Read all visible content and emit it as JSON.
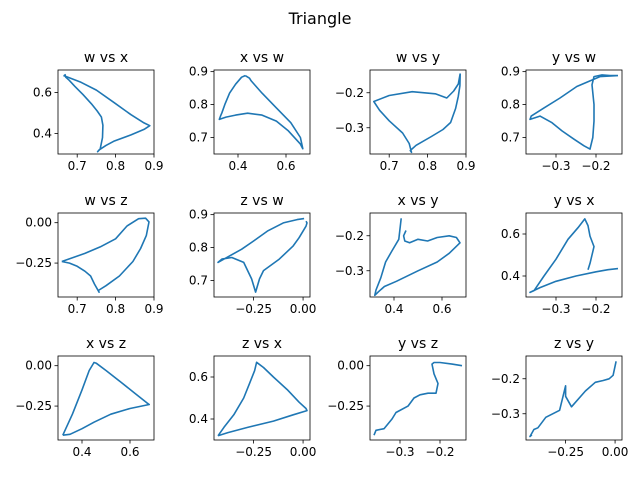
{
  "suptitle": "Triangle",
  "chart_data": [
    {
      "type": "line",
      "title": "w vs x",
      "xlim": [
        0.65,
        0.9
      ],
      "ylim": [
        0.3,
        0.71
      ],
      "xticks": [
        {
          "v": 0.7,
          "label": "0.7"
        },
        {
          "v": 0.8,
          "label": "0.8"
        },
        {
          "v": 0.9,
          "label": "0.9"
        }
      ],
      "yticks": [
        {
          "v": 0.4,
          "label": "0.4"
        },
        {
          "v": 0.6,
          "label": "0.6"
        }
      ],
      "x": [
        0.664,
        0.71,
        0.75,
        0.797,
        0.84,
        0.874,
        0.889,
        0.874,
        0.84,
        0.795,
        0.775,
        0.757,
        0.753,
        0.76,
        0.766,
        0.767,
        0.763,
        0.752,
        0.737,
        0.715,
        0.694,
        0.679,
        0.67,
        0.668
      ],
      "y": [
        0.683,
        0.65,
        0.612,
        0.55,
        0.492,
        0.452,
        0.438,
        0.42,
        0.393,
        0.362,
        0.342,
        0.32,
        0.311,
        0.325,
        0.38,
        0.44,
        0.48,
        0.51,
        0.545,
        0.59,
        0.63,
        0.66,
        0.675,
        0.69
      ]
    },
    {
      "type": "line",
      "title": "x vs w",
      "xlim": [
        0.3,
        0.7
      ],
      "ylim": [
        0.65,
        0.905
      ],
      "xticks": [
        {
          "v": 0.4,
          "label": "0.4"
        },
        {
          "v": 0.6,
          "label": "0.6"
        }
      ],
      "yticks": [
        {
          "v": 0.7,
          "label": "0.7"
        },
        {
          "v": 0.8,
          "label": "0.8"
        },
        {
          "v": 0.9,
          "label": "0.9"
        }
      ],
      "x": [
        0.43,
        0.448,
        0.455,
        0.5,
        0.56,
        0.62,
        0.66,
        0.67,
        0.66,
        0.61,
        0.56,
        0.5,
        0.44,
        0.39,
        0.35,
        0.322,
        0.327,
        0.333,
        0.345,
        0.365,
        0.39,
        0.415,
        0.43
      ],
      "y": [
        0.888,
        0.88,
        0.872,
        0.835,
        0.79,
        0.745,
        0.7,
        0.666,
        0.68,
        0.72,
        0.75,
        0.768,
        0.774,
        0.768,
        0.762,
        0.755,
        0.765,
        0.775,
        0.8,
        0.835,
        0.862,
        0.883,
        0.888
      ]
    },
    {
      "type": "line",
      "title": "w vs y",
      "xlim": [
        0.65,
        0.9
      ],
      "ylim": [
        -0.375,
        -0.135
      ],
      "xticks": [
        {
          "v": 0.7,
          "label": "0.7"
        },
        {
          "v": 0.8,
          "label": "0.8"
        },
        {
          "v": 0.9,
          "label": "0.9"
        }
      ],
      "yticks": [
        {
          "v": -0.2,
          "label": "−0.2"
        },
        {
          "v": -0.3,
          "label": "−0.3"
        }
      ],
      "x": [
        0.885,
        0.884,
        0.88,
        0.873,
        0.86,
        0.84,
        0.81,
        0.77,
        0.755,
        0.758,
        0.752,
        0.735,
        0.7,
        0.675,
        0.66,
        0.7,
        0.76,
        0.82,
        0.85,
        0.868,
        0.88,
        0.885
      ],
      "y": [
        -0.145,
        -0.18,
        -0.21,
        -0.245,
        -0.285,
        -0.305,
        -0.325,
        -0.35,
        -0.365,
        -0.37,
        -0.345,
        -0.315,
        -0.28,
        -0.25,
        -0.225,
        -0.208,
        -0.197,
        -0.203,
        -0.215,
        -0.195,
        -0.175,
        -0.145
      ]
    },
    {
      "type": "line",
      "title": "y vs w",
      "xlim": [
        -0.375,
        -0.135
      ],
      "ylim": [
        0.65,
        0.905
      ],
      "xticks": [
        {
          "v": -0.3,
          "label": "−0.3"
        },
        {
          "v": -0.2,
          "label": "−0.2"
        }
      ],
      "yticks": [
        {
          "v": 0.7,
          "label": "0.7"
        },
        {
          "v": 0.8,
          "label": "0.8"
        },
        {
          "v": 0.9,
          "label": "0.9"
        }
      ],
      "x": [
        -0.145,
        -0.19,
        -0.248,
        -0.29,
        -0.33,
        -0.362,
        -0.365,
        -0.34,
        -0.31,
        -0.285,
        -0.255,
        -0.23,
        -0.215,
        -0.208,
        -0.205,
        -0.205,
        -0.21,
        -0.205,
        -0.185,
        -0.165,
        -0.145
      ],
      "y": [
        0.888,
        0.885,
        0.855,
        0.82,
        0.79,
        0.765,
        0.755,
        0.765,
        0.745,
        0.72,
        0.695,
        0.675,
        0.665,
        0.7,
        0.75,
        0.8,
        0.86,
        0.885,
        0.89,
        0.888,
        0.888
      ]
    },
    {
      "type": "line",
      "title": "w vs z",
      "xlim": [
        0.65,
        0.9
      ],
      "ylim": [
        -0.46,
        0.06
      ],
      "xticks": [
        {
          "v": 0.7,
          "label": "0.7"
        },
        {
          "v": 0.8,
          "label": "0.8"
        },
        {
          "v": 0.9,
          "label": "0.9"
        }
      ],
      "yticks": [
        {
          "v": 0.0,
          "label": "0.00"
        },
        {
          "v": -0.25,
          "label": "−0.25"
        }
      ],
      "x": [
        0.66,
        0.72,
        0.76,
        0.8,
        0.83,
        0.86,
        0.878,
        0.887,
        0.88,
        0.865,
        0.845,
        0.81,
        0.775,
        0.755,
        0.757,
        0.745,
        0.735,
        0.72,
        0.7,
        0.68,
        0.66
      ],
      "y": [
        -0.24,
        -0.19,
        -0.15,
        -0.1,
        -0.02,
        0.025,
        0.028,
        0.005,
        -0.08,
        -0.16,
        -0.24,
        -0.33,
        -0.39,
        -0.42,
        -0.43,
        -0.38,
        -0.33,
        -0.3,
        -0.27,
        -0.25,
        -0.24
      ]
    },
    {
      "type": "line",
      "title": "z vs w",
      "xlim": [
        -0.45,
        0.035
      ],
      "ylim": [
        0.65,
        0.905
      ],
      "xticks": [
        {
          "v": -0.25,
          "label": "−0.25"
        },
        {
          "v": 0.0,
          "label": "0.00"
        }
      ],
      "yticks": [
        {
          "v": 0.7,
          "label": "0.7"
        },
        {
          "v": 0.8,
          "label": "0.8"
        },
        {
          "v": 0.9,
          "label": "0.9"
        }
      ],
      "x": [
        0.005,
        -0.03,
        -0.1,
        -0.18,
        -0.25,
        -0.31,
        -0.37,
        -0.43,
        -0.41,
        -0.36,
        -0.3,
        -0.26,
        -0.24,
        -0.22,
        -0.2,
        -0.12,
        -0.05,
        -0.02,
        0.015,
        0.02,
        0.015
      ],
      "y": [
        0.888,
        0.885,
        0.875,
        0.85,
        0.82,
        0.795,
        0.775,
        0.755,
        0.765,
        0.77,
        0.755,
        0.705,
        0.665,
        0.705,
        0.73,
        0.765,
        0.805,
        0.83,
        0.865,
        0.875,
        0.88
      ]
    },
    {
      "type": "line",
      "title": "x vs y",
      "xlim": [
        0.3,
        0.7
      ],
      "ylim": [
        -0.375,
        -0.135
      ],
      "xticks": [
        {
          "v": 0.4,
          "label": "0.4"
        },
        {
          "v": 0.6,
          "label": "0.6"
        }
      ],
      "yticks": [
        {
          "v": -0.2,
          "label": "−0.2"
        },
        {
          "v": -0.3,
          "label": "−0.3"
        }
      ],
      "x": [
        0.43,
        0.42,
        0.39,
        0.365,
        0.345,
        0.325,
        0.32,
        0.335,
        0.36,
        0.41,
        0.5,
        0.58,
        0.63,
        0.66,
        0.675,
        0.66,
        0.63,
        0.58,
        0.54,
        0.5,
        0.465,
        0.445,
        0.44,
        0.45
      ],
      "y": [
        -0.15,
        -0.21,
        -0.245,
        -0.275,
        -0.32,
        -0.355,
        -0.37,
        -0.36,
        -0.345,
        -0.33,
        -0.3,
        -0.275,
        -0.25,
        -0.23,
        -0.22,
        -0.205,
        -0.2,
        -0.205,
        -0.215,
        -0.21,
        -0.22,
        -0.215,
        -0.2,
        -0.185
      ]
    },
    {
      "type": "line",
      "title": "y vs x",
      "xlim": [
        -0.375,
        -0.135
      ],
      "ylim": [
        0.3,
        0.7
      ],
      "xticks": [
        {
          "v": -0.3,
          "label": "−0.3"
        },
        {
          "v": -0.2,
          "label": "−0.2"
        }
      ],
      "yticks": [
        {
          "v": 0.4,
          "label": "0.4"
        },
        {
          "v": 0.6,
          "label": "0.6"
        }
      ],
      "x": [
        -0.145,
        -0.17,
        -0.2,
        -0.25,
        -0.3,
        -0.34,
        -0.365,
        -0.355,
        -0.33,
        -0.3,
        -0.27,
        -0.245,
        -0.228,
        -0.22,
        -0.215,
        -0.205,
        -0.21,
        -0.215,
        -0.22
      ],
      "y": [
        0.435,
        0.43,
        0.42,
        0.4,
        0.375,
        0.345,
        0.322,
        0.33,
        0.4,
        0.48,
        0.575,
        0.63,
        0.672,
        0.64,
        0.59,
        0.54,
        0.5,
        0.46,
        0.43
      ]
    },
    {
      "type": "line",
      "title": "x vs z",
      "xlim": [
        0.3,
        0.7
      ],
      "ylim": [
        -0.46,
        0.06
      ],
      "xticks": [
        {
          "v": 0.4,
          "label": "0.4"
        },
        {
          "v": 0.6,
          "label": "0.6"
        }
      ],
      "yticks": [
        {
          "v": 0.0,
          "label": "0.00"
        },
        {
          "v": -0.25,
          "label": "−0.25"
        }
      ],
      "x": [
        0.32,
        0.36,
        0.4,
        0.43,
        0.45,
        0.46,
        0.5,
        0.56,
        0.62,
        0.67,
        0.68,
        0.6,
        0.52,
        0.45,
        0.4,
        0.35,
        0.32
      ],
      "y": [
        -0.43,
        -0.3,
        -0.15,
        -0.03,
        0.02,
        0.015,
        -0.03,
        -0.1,
        -0.17,
        -0.23,
        -0.24,
        -0.265,
        -0.3,
        -0.35,
        -0.39,
        -0.425,
        -0.43
      ]
    },
    {
      "type": "line",
      "title": "z vs x",
      "xlim": [
        -0.45,
        0.035
      ],
      "ylim": [
        0.3,
        0.7
      ],
      "xticks": [
        {
          "v": -0.25,
          "label": "−0.25"
        },
        {
          "v": 0.0,
          "label": "0.00"
        }
      ],
      "yticks": [
        {
          "v": 0.4,
          "label": "0.4"
        },
        {
          "v": 0.6,
          "label": "0.6"
        }
      ],
      "x": [
        -0.43,
        -0.4,
        -0.35,
        -0.3,
        -0.27,
        -0.245,
        -0.235,
        -0.2,
        -0.15,
        -0.08,
        -0.02,
        0.015,
        0.02,
        -0.05,
        -0.15,
        -0.28,
        -0.38,
        -0.43
      ],
      "y": [
        0.32,
        0.36,
        0.42,
        0.5,
        0.57,
        0.63,
        0.67,
        0.645,
        0.6,
        0.54,
        0.48,
        0.45,
        0.44,
        0.42,
        0.39,
        0.36,
        0.335,
        0.32
      ]
    },
    {
      "type": "line",
      "title": "y vs z",
      "xlim": [
        -0.375,
        -0.135
      ],
      "ylim": [
        -0.46,
        0.06
      ],
      "xticks": [
        {
          "v": -0.3,
          "label": "−0.3"
        },
        {
          "v": -0.2,
          "label": "−0.2"
        }
      ],
      "yticks": [
        {
          "v": 0.0,
          "label": "0.00"
        },
        {
          "v": -0.25,
          "label": "−0.25"
        }
      ],
      "x": [
        -0.365,
        -0.36,
        -0.34,
        -0.32,
        -0.31,
        -0.28,
        -0.265,
        -0.25,
        -0.23,
        -0.21,
        -0.205,
        -0.215,
        -0.22,
        -0.215,
        -0.2,
        -0.17,
        -0.145
      ],
      "y": [
        -0.43,
        -0.4,
        -0.39,
        -0.33,
        -0.29,
        -0.25,
        -0.2,
        -0.18,
        -0.17,
        -0.17,
        -0.11,
        -0.05,
        0.01,
        0.02,
        0.02,
        0.01,
        0.0
      ]
    },
    {
      "type": "line",
      "title": "z vs y",
      "xlim": [
        -0.45,
        0.035
      ],
      "ylim": [
        -0.375,
        -0.135
      ],
      "xticks": [
        {
          "v": -0.25,
          "label": "−0.25"
        },
        {
          "v": 0.0,
          "label": "0.00"
        }
      ],
      "yticks": [
        {
          "v": -0.2,
          "label": "−0.2"
        },
        {
          "v": -0.3,
          "label": "−0.3"
        }
      ],
      "x": [
        0.005,
        -0.01,
        -0.03,
        -0.06,
        -0.1,
        -0.15,
        -0.22,
        -0.25,
        -0.25,
        -0.28,
        -0.35,
        -0.39,
        -0.41,
        -0.43,
        -0.42
      ],
      "y": [
        -0.15,
        -0.19,
        -0.2,
        -0.205,
        -0.21,
        -0.235,
        -0.28,
        -0.25,
        -0.22,
        -0.29,
        -0.31,
        -0.34,
        -0.345,
        -0.365,
        -0.36
      ]
    }
  ]
}
